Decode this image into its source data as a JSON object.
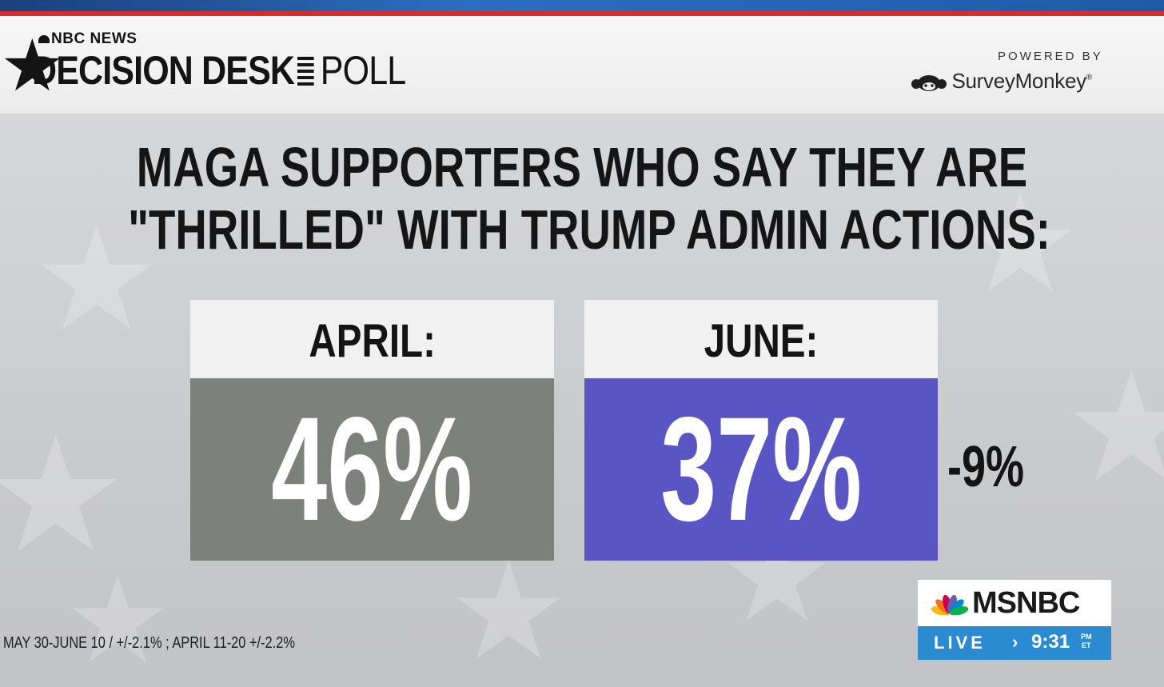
{
  "brand": {
    "network": "NBC NEWS",
    "title": "DECISION DESK",
    "suffix": "POLL",
    "powered_by": "POWERED BY",
    "partner": "SurveyMonkey",
    "partner_mark": "®"
  },
  "headline": {
    "line1": "MAGA SUPPORTERS WHO SAY THEY ARE",
    "line2": "\"THRILLED\" WITH TRUMP ADMIN ACTIONS:"
  },
  "comparison": [
    {
      "label": "APRIL:",
      "value": "46%",
      "color": "#7d807b"
    },
    {
      "label": "JUNE:",
      "value": "37%",
      "color": "#5a55c5"
    }
  ],
  "change": "-9%",
  "footnote": "MAY 30-JUNE 10 / +/-2.1% ; APRIL 11-20 +/-2.2%",
  "bug": {
    "network": "MSNBC",
    "live": "LIVE",
    "arrow": "›",
    "time": "9:31",
    "ampm": "PM",
    "tz": "ET"
  },
  "colors": {
    "red_rule": "#d92c2c",
    "live_blue": "#2b8bd1",
    "text_dark": "#141414"
  }
}
